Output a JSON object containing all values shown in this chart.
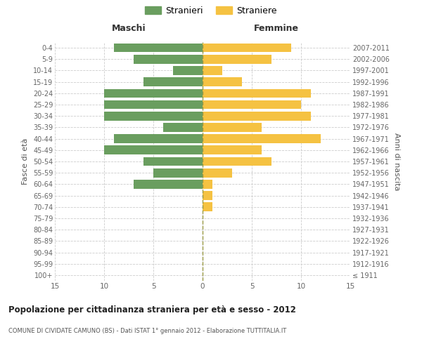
{
  "age_groups": [
    "100+",
    "95-99",
    "90-94",
    "85-89",
    "80-84",
    "75-79",
    "70-74",
    "65-69",
    "60-64",
    "55-59",
    "50-54",
    "45-49",
    "40-44",
    "35-39",
    "30-34",
    "25-29",
    "20-24",
    "15-19",
    "10-14",
    "5-9",
    "0-4"
  ],
  "birth_years": [
    "≤ 1911",
    "1912-1916",
    "1917-1921",
    "1922-1926",
    "1927-1931",
    "1932-1936",
    "1937-1941",
    "1942-1946",
    "1947-1951",
    "1952-1956",
    "1957-1961",
    "1962-1966",
    "1967-1971",
    "1972-1976",
    "1977-1981",
    "1982-1986",
    "1987-1991",
    "1992-1996",
    "1997-2001",
    "2002-2006",
    "2007-2011"
  ],
  "males": [
    0,
    0,
    0,
    0,
    0,
    0,
    0,
    0,
    7,
    5,
    6,
    10,
    9,
    4,
    10,
    10,
    10,
    6,
    3,
    7,
    9
  ],
  "females": [
    0,
    0,
    0,
    0,
    0,
    0,
    1,
    1,
    1,
    3,
    7,
    6,
    12,
    6,
    11,
    10,
    11,
    4,
    2,
    7,
    9
  ],
  "male_color": "#6a9e5f",
  "female_color": "#f5c242",
  "title": "Popolazione per cittadinanza straniera per età e sesso - 2012",
  "subtitle": "COMUNE DI CIVIDATE CAMUNO (BS) - Dati ISTAT 1° gennaio 2012 - Elaborazione TUTTITALIA.IT",
  "xlabel_left": "Maschi",
  "xlabel_right": "Femmine",
  "ylabel_left": "Fasce di età",
  "ylabel_right": "Anni di nascita",
  "legend_male": "Stranieri",
  "legend_female": "Straniere",
  "xlim": 15,
  "background_color": "#ffffff"
}
